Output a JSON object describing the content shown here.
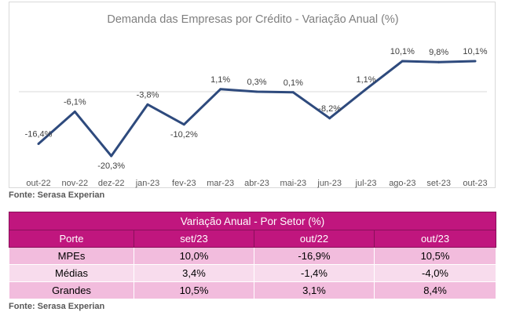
{
  "chart_data": {
    "type": "line",
    "title": "Demanda das Empresas por Crédito - Variação Anual (%)",
    "categories": [
      "out-22",
      "nov-22",
      "dez-22",
      "jan-23",
      "fev-23",
      "mar-23",
      "abr-23",
      "mai-23",
      "jun-23",
      "jul-23",
      "ago-23",
      "set-23",
      "out-23"
    ],
    "values": [
      -16.4,
      -6.1,
      -20.3,
      -3.8,
      -10.2,
      1.1,
      0.3,
      0.1,
      -8.2,
      1.1,
      10.1,
      9.8,
      10.1
    ],
    "data_labels": [
      "-16,4%",
      "-6,1%",
      "-20,3%",
      "-3,8%",
      "-10,2%",
      "1,1%",
      "0,3%",
      "0,1%",
      "-8,2%",
      "1,1%",
      "10,1%",
      "9,8%",
      "10,1%"
    ],
    "line_color": "#2e4a7d",
    "grid": false,
    "legend": "none"
  },
  "chart_source": "Fonte: Serasa Experian",
  "table": {
    "title": "Variação Anual - Por Setor (%)",
    "headers": [
      "Porte",
      "set/23",
      "out/22",
      "out/23"
    ],
    "rows": [
      [
        "MPEs",
        "10,0%",
        "-16,9%",
        "10,5%"
      ],
      [
        "Médias",
        "3,4%",
        "-1,4%",
        "-4,0%"
      ],
      [
        "Grandes",
        "10,5%",
        "3,1%",
        "8,4%"
      ]
    ],
    "header_color": "#c0167e"
  },
  "table_source": "Fonte: Serasa Experian"
}
